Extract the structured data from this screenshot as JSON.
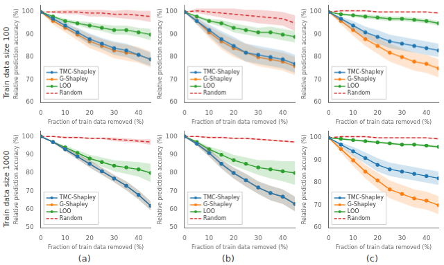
{
  "row_labels": [
    "Train data size 100",
    "Train data size 1000"
  ],
  "col_labels": [
    "(a)",
    "(b)",
    "(c)"
  ],
  "chart_data": [
    {
      "type": "line",
      "xlabel": "Fraction of train data removed (%)",
      "ylabel": "Relative prediction accuracy (%)",
      "x": [
        0,
        5,
        10,
        15,
        20,
        25,
        30,
        35,
        40,
        45
      ],
      "xlim": [
        0,
        45
      ],
      "xticks": [
        0,
        10,
        20,
        30,
        40
      ],
      "ylim": [
        60,
        103
      ],
      "yticks": [
        60,
        70,
        80,
        90,
        100
      ],
      "grid": false,
      "legend": "lower left",
      "series": [
        {
          "name": "TMC-Shapley",
          "color": "#1f77b4",
          "marker": "circle",
          "line_style": "solid",
          "values": [
            100,
            97,
            94,
            91,
            88,
            86,
            84,
            83,
            81,
            79
          ],
          "std": [
            0,
            1.0,
            1.5,
            2.0,
            2.5,
            2.5,
            3.0,
            3.0,
            3.0,
            3.0
          ]
        },
        {
          "name": "G-Shapley",
          "color": "#ff7f0e",
          "marker": "circle",
          "line_style": "solid",
          "values": [
            100,
            96,
            93,
            90,
            87,
            85,
            83,
            82,
            81,
            79
          ],
          "std": [
            0,
            1.5,
            2.0,
            2.5,
            3.0,
            3.0,
            3.5,
            3.5,
            3.5,
            3.5
          ]
        },
        {
          "name": "LOO",
          "color": "#2ca02c",
          "marker": "circle",
          "line_style": "solid",
          "values": [
            100,
            98,
            96,
            95,
            94,
            93,
            92,
            92,
            91,
            90
          ],
          "std": [
            0,
            0.5,
            1.0,
            1.0,
            1.5,
            1.5,
            2.0,
            2.0,
            2.0,
            2.5
          ]
        },
        {
          "name": "Random",
          "color": "#d62728",
          "marker": "none",
          "line_style": "dashed",
          "values": [
            100,
            100,
            100,
            100,
            99.5,
            99.5,
            99,
            99,
            98.5,
            98
          ],
          "std": [
            0,
            0.5,
            1.0,
            1.0,
            1.5,
            1.5,
            1.5,
            2.0,
            2.0,
            2.5
          ]
        }
      ]
    },
    {
      "type": "line",
      "xlabel": "Fraction of train data removed (%)",
      "ylabel": "Relative prediction accuracy (%)",
      "x": [
        0,
        5,
        10,
        15,
        20,
        25,
        30,
        35,
        40,
        45
      ],
      "xlim": [
        0,
        45
      ],
      "xticks": [
        0,
        10,
        20,
        30,
        40
      ],
      "ylim": [
        60,
        103
      ],
      "yticks": [
        60,
        70,
        80,
        90,
        100
      ],
      "grid": false,
      "legend": "lower left",
      "series": [
        {
          "name": "TMC-Shapley",
          "color": "#1f77b4",
          "marker": "circle",
          "line_style": "solid",
          "values": [
            100,
            96,
            92,
            88,
            85,
            82,
            81,
            80,
            79,
            77
          ],
          "std": [
            0,
            1.5,
            2.5,
            3.5,
            4.0,
            4.0,
            4.0,
            4.0,
            4.0,
            4.0
          ]
        },
        {
          "name": "G-Shapley",
          "color": "#ff7f0e",
          "marker": "circle",
          "line_style": "solid",
          "values": [
            100,
            96,
            91,
            87,
            84,
            82,
            80,
            79,
            78,
            76
          ],
          "std": [
            0,
            1.5,
            2.5,
            3.5,
            4.0,
            4.0,
            4.0,
            4.0,
            4.0,
            4.0
          ]
        },
        {
          "name": "LOO",
          "color": "#2ca02c",
          "marker": "circle",
          "line_style": "solid",
          "values": [
            100,
            98,
            96,
            95,
            93,
            92,
            91,
            91,
            90,
            89
          ],
          "std": [
            0,
            0.5,
            1.0,
            1.5,
            2.0,
            2.0,
            2.0,
            2.5,
            2.5,
            2.5
          ]
        },
        {
          "name": "Random",
          "color": "#d62728",
          "marker": "none",
          "line_style": "dashed",
          "values": [
            100,
            100.5,
            100,
            99.5,
            99,
            98.5,
            98,
            97.5,
            97,
            95
          ],
          "std": [
            0,
            1.0,
            1.5,
            2.0,
            2.5,
            2.5,
            3.0,
            3.0,
            3.0,
            3.5
          ]
        }
      ]
    },
    {
      "type": "line",
      "xlabel": "Fraction of train data removed (%)",
      "ylabel": "Relative prediction accuracy (%)",
      "x": [
        0,
        5,
        10,
        15,
        20,
        25,
        30,
        35,
        40,
        45
      ],
      "xlim": [
        0,
        45
      ],
      "xticks": [
        0,
        10,
        20,
        30,
        40
      ],
      "ylim": [
        60,
        103
      ],
      "yticks": [
        60,
        70,
        80,
        90,
        100
      ],
      "grid": false,
      "legend": "lower left",
      "series": [
        {
          "name": "TMC-Shapley",
          "color": "#1f77b4",
          "marker": "circle",
          "line_style": "solid",
          "values": [
            100,
            97,
            94,
            91,
            89,
            87,
            86,
            85,
            84,
            83
          ],
          "std": [
            0,
            1.0,
            2.0,
            2.5,
            3.0,
            3.0,
            3.0,
            3.0,
            3.0,
            3.0
          ]
        },
        {
          "name": "G-Shapley",
          "color": "#ff7f0e",
          "marker": "circle",
          "line_style": "solid",
          "values": [
            100,
            96,
            92,
            88,
            85,
            82,
            80,
            78,
            77,
            75
          ],
          "std": [
            0,
            1.5,
            2.5,
            3.0,
            3.5,
            4.0,
            4.0,
            4.0,
            4.0,
            4.0
          ]
        },
        {
          "name": "LOO",
          "color": "#2ca02c",
          "marker": "circle",
          "line_style": "solid",
          "values": [
            100,
            99,
            98.5,
            98,
            97.5,
            97,
            97,
            96.5,
            96,
            95
          ],
          "std": [
            0,
            0.5,
            0.5,
            1.0,
            1.0,
            1.0,
            1.0,
            1.0,
            1.0,
            1.0
          ]
        },
        {
          "name": "Random",
          "color": "#d62728",
          "marker": "none",
          "line_style": "dashed",
          "values": [
            100,
            100.5,
            100.5,
            100.5,
            100,
            100,
            100,
            100,
            100,
            99.5
          ],
          "std": [
            0,
            0.3,
            0.3,
            0.3,
            0.3,
            0.3,
            0.3,
            0.3,
            0.3,
            0.3
          ]
        }
      ]
    },
    {
      "type": "line",
      "xlabel": "Fraction of train data removed (%)",
      "ylabel": "Relative prediction accuracy (%)",
      "x": [
        0,
        5,
        10,
        15,
        20,
        25,
        30,
        35,
        40,
        45
      ],
      "xlim": [
        0,
        45
      ],
      "xticks": [
        0,
        10,
        20,
        30,
        40
      ],
      "ylim": [
        50,
        103
      ],
      "yticks": [
        50,
        60,
        70,
        80,
        90,
        100
      ],
      "grid": false,
      "legend": "lower left",
      "series": [
        {
          "name": "TMC-Shapley",
          "color": "#1f77b4",
          "marker": "circle",
          "line_style": "solid",
          "values": [
            100,
            97,
            93,
            89,
            85,
            81,
            77,
            73,
            68,
            62
          ],
          "std": [
            0,
            0.5,
            1.0,
            1.5,
            2.0,
            2.0,
            2.0,
            2.5,
            2.5,
            2.5
          ]
        },
        {
          "name": "G-Shapley",
          "color": "#ff7f0e",
          "marker": "circle",
          "line_style": "solid",
          "values": [
            100,
            97,
            93,
            89,
            85,
            81,
            77,
            73,
            68,
            62
          ],
          "std": [
            0,
            0.5,
            1.0,
            1.5,
            2.0,
            2.0,
            2.0,
            2.5,
            2.5,
            2.5
          ]
        },
        {
          "name": "LOO",
          "color": "#2ca02c",
          "marker": "circle",
          "line_style": "solid",
          "values": [
            100,
            97,
            94,
            91,
            88,
            86,
            84,
            83,
            82,
            80
          ],
          "std": [
            0,
            0.5,
            1.0,
            1.5,
            2.0,
            2.5,
            3.0,
            3.5,
            4.0,
            5.0
          ]
        },
        {
          "name": "Random",
          "color": "#d62728",
          "marker": "none",
          "line_style": "dashed",
          "values": [
            100,
            100,
            99.5,
            99.5,
            99,
            99,
            98.5,
            98,
            97.5,
            97
          ],
          "std": [
            0,
            0.3,
            0.5,
            0.5,
            0.5,
            0.5,
            1.0,
            1.0,
            1.0,
            1.5
          ]
        }
      ]
    },
    {
      "type": "line",
      "xlabel": "Fraction of train data removed (%)",
      "ylabel": "Relative prediction accuracy (%)",
      "x": [
        0,
        5,
        10,
        15,
        20,
        25,
        30,
        35,
        40,
        45
      ],
      "xlim": [
        0,
        45
      ],
      "xticks": [
        0,
        10,
        20,
        30,
        40
      ],
      "ylim": [
        50,
        103
      ],
      "yticks": [
        50,
        60,
        70,
        80,
        90,
        100
      ],
      "grid": false,
      "legend": "lower left",
      "series": [
        {
          "name": "TMC-Shapley",
          "color": "#1f77b4",
          "marker": "circle",
          "line_style": "solid",
          "values": [
            100,
            96,
            91,
            85,
            80,
            76,
            72,
            69,
            67,
            63
          ],
          "std": [
            0,
            1.0,
            2.0,
            2.5,
            3.0,
            3.5,
            3.5,
            4.0,
            4.0,
            4.0
          ]
        },
        {
          "name": "G-Shapley",
          "color": "#ff7f0e",
          "marker": "circle",
          "line_style": "solid",
          "values": [
            100,
            96,
            91,
            85,
            80,
            76,
            72,
            69,
            67,
            63
          ],
          "std": [
            0,
            1.0,
            2.0,
            2.5,
            3.0,
            3.5,
            3.5,
            4.0,
            4.0,
            4.0
          ]
        },
        {
          "name": "LOO",
          "color": "#2ca02c",
          "marker": "circle",
          "line_style": "solid",
          "values": [
            100,
            97,
            93,
            90,
            87,
            85,
            83,
            82,
            81,
            80
          ],
          "std": [
            0,
            0.5,
            1.5,
            2.5,
            3.0,
            3.5,
            4.0,
            5.0,
            5.5,
            6.5
          ]
        },
        {
          "name": "Random",
          "color": "#d62728",
          "marker": "none",
          "line_style": "dashed",
          "values": [
            100,
            100,
            99.5,
            99.5,
            99,
            99,
            98.5,
            98,
            97.5,
            97
          ],
          "std": [
            0,
            0.3,
            0.5,
            0.5,
            0.5,
            0.5,
            0.5,
            0.5,
            0.5,
            0.5
          ]
        }
      ]
    },
    {
      "type": "line",
      "xlabel": "Fraction of train data removed (%)",
      "ylabel": "Relative prediction accuracy (%)",
      "x": [
        0,
        5,
        10,
        15,
        20,
        25,
        30,
        35,
        40,
        45
      ],
      "xlim": [
        0,
        45
      ],
      "xticks": [
        0,
        10,
        20,
        30,
        40
      ],
      "ylim": [
        60,
        103
      ],
      "yticks": [
        60,
        70,
        80,
        90,
        100
      ],
      "grid": false,
      "legend": "lower left",
      "series": [
        {
          "name": "TMC-Shapley",
          "color": "#1f77b4",
          "marker": "circle",
          "line_style": "solid",
          "values": [
            100,
            97,
            94,
            91,
            88,
            86,
            85,
            84,
            83,
            82
          ],
          "std": [
            0,
            1.0,
            2.0,
            2.5,
            3.0,
            3.0,
            3.0,
            3.0,
            3.0,
            3.0
          ]
        },
        {
          "name": "G-Shapley",
          "color": "#ff7f0e",
          "marker": "circle",
          "line_style": "solid",
          "values": [
            100,
            95,
            90,
            85,
            81,
            77,
            75,
            73,
            72,
            70
          ],
          "std": [
            0,
            1.5,
            2.5,
            3.0,
            3.5,
            4.0,
            4.0,
            4.0,
            4.0,
            4.0
          ]
        },
        {
          "name": "LOO",
          "color": "#2ca02c",
          "marker": "circle",
          "line_style": "solid",
          "values": [
            100,
            99.5,
            99,
            98.5,
            98,
            97.5,
            97,
            97,
            96.5,
            96
          ],
          "std": [
            0,
            0.3,
            0.5,
            0.5,
            0.5,
            0.5,
            0.5,
            0.5,
            0.5,
            0.5
          ]
        },
        {
          "name": "Random",
          "color": "#d62728",
          "marker": "none",
          "line_style": "dashed",
          "values": [
            100,
            100.5,
            100.5,
            100.5,
            100,
            100,
            100,
            100,
            100,
            99.5
          ],
          "std": [
            0,
            0.3,
            0.3,
            0.3,
            0.3,
            0.3,
            0.3,
            0.3,
            0.3,
            0.3
          ]
        }
      ]
    }
  ]
}
